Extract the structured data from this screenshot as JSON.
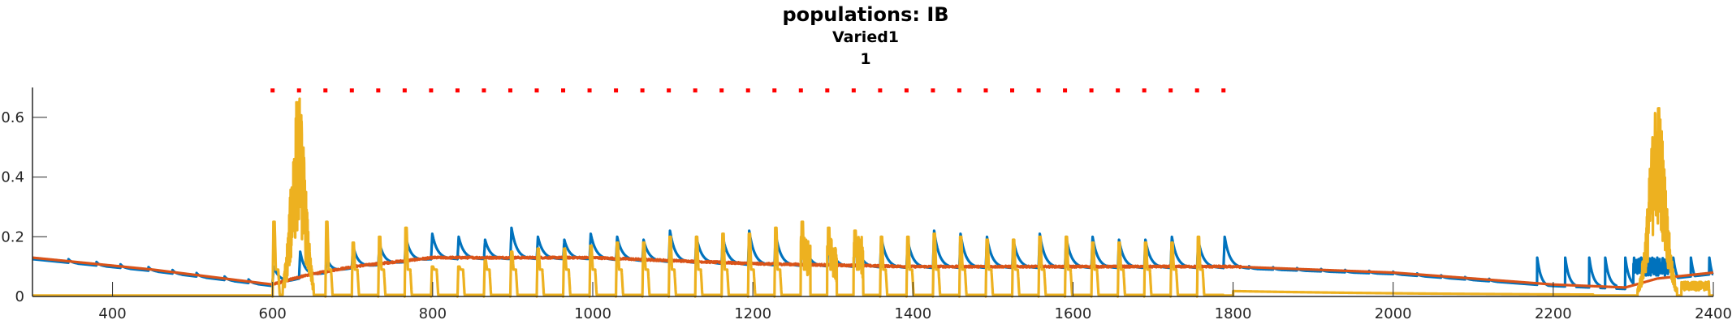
{
  "chart_data": {
    "type": "line",
    "title": "populations: IB",
    "subtitle_lines": [
      "Varied1",
      "1"
    ],
    "xlabel": "",
    "ylabel": "",
    "xlim": [
      300,
      2400
    ],
    "ylim": [
      0,
      0.7
    ],
    "x_ticks": [
      400,
      600,
      800,
      1000,
      1200,
      1400,
      1600,
      1800,
      2000,
      2200,
      2400
    ],
    "y_ticks": [
      0,
      0.2,
      0.4,
      0.6
    ],
    "y_tick_labels": [
      "0",
      "0.2",
      "0.4",
      "0.6"
    ],
    "grid": false,
    "legend": "none",
    "colors": {
      "blue": "#0072bd",
      "orange": "#d95319",
      "yellow": "#edb120",
      "markers": "#ff0000",
      "axis": "#262626"
    },
    "stim_markers": {
      "start": 600,
      "end": 1800,
      "period": 33,
      "y": 0.69,
      "color": "#ff0000"
    },
    "baseline_bumps": {
      "pre": [
        345,
        380,
        410,
        445,
        475,
        505,
        540,
        570
      ],
      "post": [
        1820,
        1850,
        1880,
        1910,
        1940,
        1970,
        2000,
        2030,
        2060,
        2090,
        2120
      ]
    },
    "late_burst": {
      "spikes": [
        2180,
        2215,
        2245,
        2265,
        2290,
        2310,
        2350,
        2372,
        2395
      ],
      "peak_center": 2330,
      "peak_value": 0.67
    },
    "series": [
      {
        "color_key": "blue",
        "kind": "pulses_decay",
        "pulse_start": 600,
        "period": 33,
        "pulse_end": 1800,
        "peaks": [
          0.1,
          0.15,
          0.13,
          0.17,
          0.18,
          0.2,
          0.21,
          0.2,
          0.19,
          0.23,
          0.2,
          0.19,
          0.21,
          0.2,
          0.19,
          0.22,
          0.2,
          0.2,
          0.22,
          0.21,
          0.22,
          0.2,
          0.21,
          0.2,
          0.19,
          0.22,
          0.21,
          0.2,
          0.19,
          0.21,
          0.2,
          0.2,
          0.19,
          0.19,
          0.2,
          0.19,
          0.2
        ]
      },
      {
        "color_key": "orange",
        "kind": "smooth",
        "points": [
          [
            300,
            0.13
          ],
          [
            450,
            0.09
          ],
          [
            600,
            0.04
          ],
          [
            640,
            0.07
          ],
          [
            700,
            0.1
          ],
          [
            800,
            0.13
          ],
          [
            1000,
            0.13
          ],
          [
            1200,
            0.11
          ],
          [
            1400,
            0.1
          ],
          [
            1600,
            0.1
          ],
          [
            1800,
            0.1
          ],
          [
            2000,
            0.08
          ],
          [
            2200,
            0.04
          ],
          [
            2290,
            0.03
          ],
          [
            2330,
            0.06
          ],
          [
            2400,
            0.08
          ]
        ]
      },
      {
        "color_key": "yellow",
        "kind": "pulses_square",
        "pulse_start": 600,
        "period": 33,
        "pulse_end": 1800,
        "peaks": [
          0.25,
          0.3,
          0.25,
          0.18,
          0.2,
          0.23,
          0.1,
          0.1,
          0.12,
          0.15,
          0.16,
          0.16,
          0.17,
          0.18,
          0.18,
          0.2,
          0.2,
          0.21,
          0.21,
          0.23,
          0.25,
          0.23,
          0.22,
          0.2,
          0.2,
          0.21,
          0.2,
          0.19,
          0.19,
          0.2,
          0.2,
          0.18,
          0.18,
          0.18,
          0.18,
          0.2
        ],
        "early_burst_center": 632,
        "early_burst_peak": 0.69
      }
    ]
  }
}
